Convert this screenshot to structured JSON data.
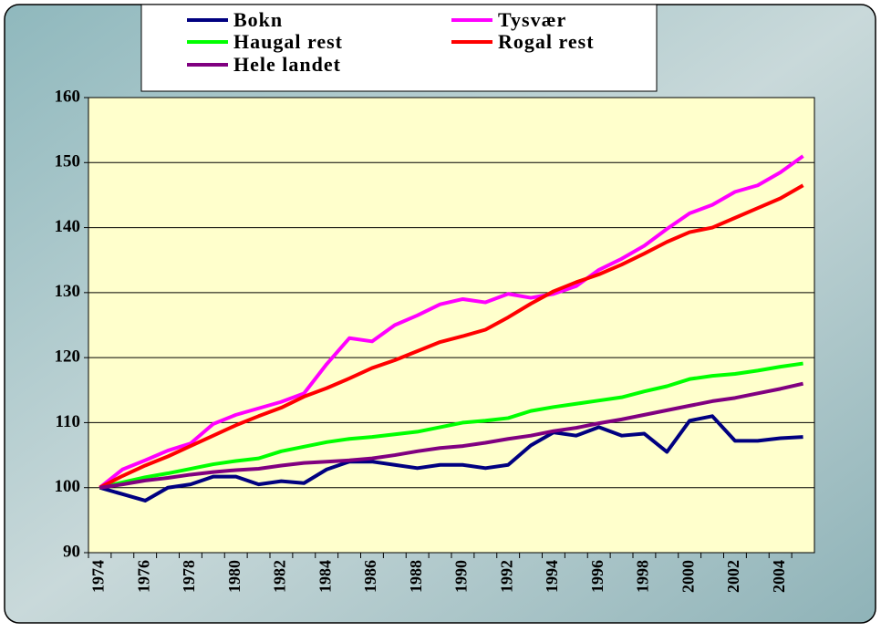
{
  "chart_data": {
    "type": "line",
    "categories": [
      "1974",
      null,
      "1976",
      null,
      "1978",
      null,
      "1980",
      null,
      "1982",
      null,
      "1984",
      null,
      "1986",
      null,
      "1988",
      null,
      "1990",
      null,
      "1992",
      null,
      "1994",
      null,
      "1996",
      null,
      "1998",
      null,
      "2000",
      null,
      "2002",
      null,
      "2004",
      null
    ],
    "ylim": [
      90,
      160
    ],
    "yticks": [
      90,
      100,
      110,
      120,
      130,
      140,
      150,
      160
    ],
    "grid": true,
    "series": [
      {
        "name": "Bokn",
        "color": "#000080",
        "values": [
          100,
          99,
          98,
          100,
          100.5,
          101.7,
          101.7,
          100.5,
          101,
          100.7,
          102.8,
          104,
          104,
          103.5,
          103,
          103.5,
          103.5,
          103,
          103.5,
          106.5,
          108.5,
          108,
          109.3,
          108,
          108.3,
          105.5,
          110.3,
          111,
          107.2,
          107.2,
          107.6,
          107.8
        ]
      },
      {
        "name": "Tysvær",
        "color": "#ff00ff",
        "values": [
          100,
          102.8,
          104.2,
          105.7,
          106.8,
          109.8,
          111.2,
          112.2,
          113.2,
          114.5,
          119,
          123,
          122.5,
          125,
          126.5,
          128.2,
          129,
          128.5,
          129.8,
          129.2,
          129.8,
          131,
          133.5,
          135.2,
          137.2,
          139.8,
          142.2,
          143.5,
          145.5,
          146.5,
          148.5,
          151
        ]
      },
      {
        "name": "Haugal rest",
        "color": "#00ff00",
        "values": [
          100,
          100.8,
          101.6,
          102.2,
          102.9,
          103.6,
          104.1,
          104.5,
          105.6,
          106.3,
          107,
          107.5,
          107.8,
          108.2,
          108.6,
          109.3,
          110,
          110.3,
          110.7,
          111.8,
          112.4,
          112.9,
          113.4,
          113.9,
          114.8,
          115.6,
          116.7,
          117.2,
          117.5,
          118,
          118.6,
          119.1
        ]
      },
      {
        "name": "Rogal rest",
        "color": "#ff0000",
        "values": [
          100,
          101.8,
          103.4,
          104.8,
          106.4,
          108,
          109.6,
          111,
          112.3,
          114,
          115.3,
          116.8,
          118.4,
          119.6,
          121,
          122.4,
          123.3,
          124.3,
          126.2,
          128.3,
          130.2,
          131.6,
          132.8,
          134.3,
          136,
          137.8,
          139.3,
          140,
          141.5,
          143,
          144.5,
          146.5
        ]
      },
      {
        "name": "Hele landet",
        "color": "#800080",
        "values": [
          100,
          100.5,
          101.1,
          101.5,
          102,
          102.4,
          102.7,
          102.9,
          103.4,
          103.8,
          104,
          104.2,
          104.5,
          105,
          105.6,
          106.1,
          106.4,
          106.9,
          107.5,
          108,
          108.7,
          109.2,
          109.9,
          110.5,
          111.2,
          111.9,
          112.6,
          113.3,
          113.8,
          114.5,
          115.2,
          116
        ]
      }
    ]
  }
}
